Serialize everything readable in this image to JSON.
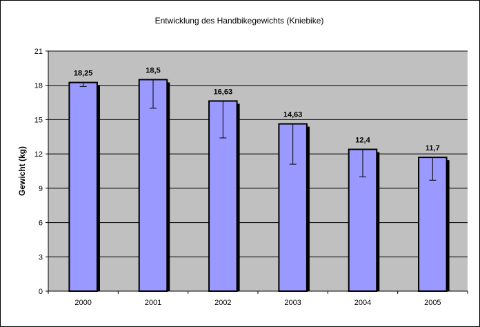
{
  "chart_data": {
    "type": "bar",
    "title": "Entwicklung des Handbikegewichts (Kniebike)",
    "xlabel": "",
    "ylabel": "Gewicht (kg)",
    "ylim": [
      0,
      21
    ],
    "yticks": [
      0,
      3,
      6,
      9,
      12,
      15,
      18,
      21
    ],
    "grid": true,
    "categories": [
      "2000",
      "2001",
      "2002",
      "2003",
      "2004",
      "2005"
    ],
    "values": [
      18.25,
      18.5,
      16.63,
      14.63,
      12.4,
      11.7
    ],
    "value_labels": [
      "18,25",
      "18,5",
      "16,63",
      "14,63",
      "12,4",
      "11,7"
    ],
    "error_bars_low": [
      17.9,
      16.0,
      13.4,
      11.1,
      10.0,
      9.7
    ],
    "colors": {
      "bar_fill": "#9999ff",
      "bar_border": "#000000",
      "bar_shadow": "#000000",
      "plot_background": "#c0c0c0",
      "gridline": "#000000"
    }
  }
}
